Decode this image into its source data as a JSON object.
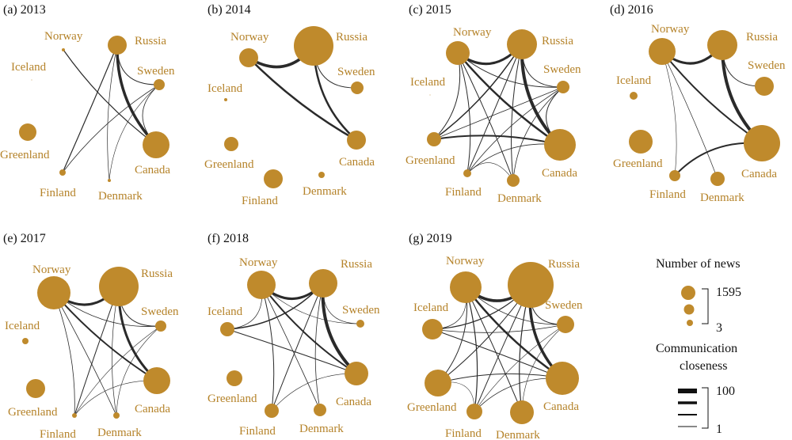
{
  "colors": {
    "node": "#bf8a2c",
    "label": "#b5832a",
    "edge": "#2a2a2a",
    "text": "#111111"
  },
  "panels": [
    {
      "id": "2013",
      "title": "(a) 2013",
      "nodes": {
        "Norway": {
          "name": "Norway",
          "size": 2
        },
        "Russia": {
          "name": "Russia",
          "size": 12
        },
        "Iceland": {
          "name": "Iceland",
          "size": 0.5
        },
        "Sweden": {
          "name": "Sweden",
          "size": 7
        },
        "Greenland": {
          "name": "Greenland",
          "size": 11
        },
        "Canada": {
          "name": "Canada",
          "size": 17
        },
        "Finland": {
          "name": "Finland",
          "size": 4
        },
        "Denmark": {
          "name": "Denmark",
          "size": 2
        }
      },
      "edges": [
        [
          "Russia",
          "Canada",
          3.5
        ],
        [
          "Norway",
          "Canada",
          1.2
        ],
        [
          "Russia",
          "Finland",
          1.2
        ],
        [
          "Russia",
          "Sweden",
          1
        ],
        [
          "Sweden",
          "Finland",
          0.8
        ],
        [
          "Sweden",
          "Canada",
          0.8
        ],
        [
          "Russia",
          "Denmark",
          0.7
        ],
        [
          "Sweden",
          "Denmark",
          0.6
        ]
      ]
    },
    {
      "id": "2014",
      "title": "(b) 2014",
      "nodes": {
        "Norway": {
          "name": "Norway",
          "size": 12
        },
        "Russia": {
          "name": "Russia",
          "size": 25
        },
        "Iceland": {
          "name": "Iceland",
          "size": 2
        },
        "Sweden": {
          "name": "Sweden",
          "size": 8
        },
        "Greenland": {
          "name": "Greenland",
          "size": 9
        },
        "Canada": {
          "name": "Canada",
          "size": 12
        },
        "Finland": {
          "name": "Finland",
          "size": 12
        },
        "Denmark": {
          "name": "Denmark",
          "size": 4
        }
      },
      "edges": [
        [
          "Norway",
          "Russia",
          3.5
        ],
        [
          "Norway",
          "Canada",
          2.5
        ],
        [
          "Russia",
          "Canada",
          2.5
        ],
        [
          "Russia",
          "Sweden",
          1
        ]
      ]
    },
    {
      "id": "2015",
      "title": "(c) 2015",
      "nodes": {
        "Norway": {
          "name": "Norway",
          "size": 15
        },
        "Russia": {
          "name": "Russia",
          "size": 19
        },
        "Iceland": {
          "name": "Iceland",
          "size": 0.5
        },
        "Sweden": {
          "name": "Sweden",
          "size": 8
        },
        "Greenland": {
          "name": "Greenland",
          "size": 9
        },
        "Canada": {
          "name": "Canada",
          "size": 20
        },
        "Finland": {
          "name": "Finland",
          "size": 5
        },
        "Denmark": {
          "name": "Denmark",
          "size": 8
        }
      },
      "edges": [
        [
          "Norway",
          "Russia",
          3
        ],
        [
          "Russia",
          "Canada",
          4
        ],
        [
          "Norway",
          "Canada",
          2.5
        ],
        [
          "Greenland",
          "Canada",
          2
        ],
        [
          "Greenland",
          "Russia",
          1.5
        ],
        [
          "Norway",
          "Greenland",
          1
        ],
        [
          "Norway",
          "Finland",
          1
        ],
        [
          "Norway",
          "Denmark",
          1
        ],
        [
          "Norway",
          "Sweden",
          1
        ],
        [
          "Russia",
          "Finland",
          1
        ],
        [
          "Russia",
          "Denmark",
          1
        ],
        [
          "Russia",
          "Sweden",
          1
        ],
        [
          "Sweden",
          "Finland",
          0.8
        ],
        [
          "Sweden",
          "Denmark",
          0.8
        ],
        [
          "Sweden",
          "Canada",
          1
        ],
        [
          "Finland",
          "Canada",
          0.8
        ],
        [
          "Greenland",
          "Sweden",
          0.8
        ],
        [
          "Finland",
          "Denmark",
          0.6
        ]
      ]
    },
    {
      "id": "2016",
      "title": "(d) 2016",
      "nodes": {
        "Norway": {
          "name": "Norway",
          "size": 17
        },
        "Russia": {
          "name": "Russia",
          "size": 19
        },
        "Iceland": {
          "name": "Iceland",
          "size": 5
        },
        "Sweden": {
          "name": "Sweden",
          "size": 12
        },
        "Greenland": {
          "name": "Greenland",
          "size": 15
        },
        "Canada": {
          "name": "Canada",
          "size": 23
        },
        "Finland": {
          "name": "Finland",
          "size": 7
        },
        "Denmark": {
          "name": "Denmark",
          "size": 9
        }
      },
      "edges": [
        [
          "Norway",
          "Russia",
          3
        ],
        [
          "Russia",
          "Canada",
          4
        ],
        [
          "Norway",
          "Canada",
          2
        ],
        [
          "Finland",
          "Canada",
          2
        ],
        [
          "Russia",
          "Sweden",
          1
        ],
        [
          "Norway",
          "Denmark",
          0.7
        ],
        [
          "Norway",
          "Finland",
          0.6
        ]
      ]
    },
    {
      "id": "2017",
      "title": "(e) 2017",
      "nodes": {
        "Norway": {
          "name": "Norway",
          "size": 21
        },
        "Russia": {
          "name": "Russia",
          "size": 25
        },
        "Iceland": {
          "name": "Iceland",
          "size": 4
        },
        "Sweden": {
          "name": "Sweden",
          "size": 7
        },
        "Greenland": {
          "name": "Greenland",
          "size": 12
        },
        "Canada": {
          "name": "Canada",
          "size": 17
        },
        "Finland": {
          "name": "Finland",
          "size": 3
        },
        "Denmark": {
          "name": "Denmark",
          "size": 4
        }
      },
      "edges": [
        [
          "Norway",
          "Russia",
          3
        ],
        [
          "Russia",
          "Canada",
          3
        ],
        [
          "Norway",
          "Canada",
          2
        ],
        [
          "Russia",
          "Sweden",
          1
        ],
        [
          "Norway",
          "Sweden",
          0.8
        ],
        [
          "Norway",
          "Denmark",
          0.8
        ],
        [
          "Norway",
          "Finland",
          0.8
        ],
        [
          "Russia",
          "Finland",
          1
        ],
        [
          "Russia",
          "Denmark",
          0.7
        ],
        [
          "Sweden",
          "Finland",
          0.6
        ],
        [
          "Sweden",
          "Denmark",
          0.6
        ],
        [
          "Finland",
          "Canada",
          0.6
        ]
      ]
    },
    {
      "id": "2018",
      "title": "(f) 2018",
      "nodes": {
        "Norway": {
          "name": "Norway",
          "size": 18
        },
        "Russia": {
          "name": "Russia",
          "size": 18
        },
        "Iceland": {
          "name": "Iceland",
          "size": 9
        },
        "Sweden": {
          "name": "Sweden",
          "size": 5
        },
        "Greenland": {
          "name": "Greenland",
          "size": 10
        },
        "Canada": {
          "name": "Canada",
          "size": 15
        },
        "Finland": {
          "name": "Finland",
          "size": 9
        },
        "Denmark": {
          "name": "Denmark",
          "size": 8
        }
      },
      "edges": [
        [
          "Norway",
          "Russia",
          3
        ],
        [
          "Russia",
          "Canada",
          4
        ],
        [
          "Norway",
          "Canada",
          2
        ],
        [
          "Iceland",
          "Russia",
          1.5
        ],
        [
          "Iceland",
          "Canada",
          1
        ],
        [
          "Norway",
          "Finland",
          1
        ],
        [
          "Russia",
          "Finland",
          1
        ],
        [
          "Russia",
          "Denmark",
          0.8
        ],
        [
          "Norway",
          "Denmark",
          0.8
        ],
        [
          "Norway",
          "Sweden",
          0.6
        ],
        [
          "Russia",
          "Sweden",
          0.7
        ],
        [
          "Norway",
          "Iceland",
          0.7
        ],
        [
          "Finland",
          "Canada",
          0.6
        ]
      ]
    },
    {
      "id": "2019",
      "title": "(g) 2019",
      "nodes": {
        "Norway": {
          "name": "Norway",
          "size": 20
        },
        "Russia": {
          "name": "Russia",
          "size": 29
        },
        "Iceland": {
          "name": "Iceland",
          "size": 13
        },
        "Sweden": {
          "name": "Sweden",
          "size": 11
        },
        "Greenland": {
          "name": "Greenland",
          "size": 17
        },
        "Canada": {
          "name": "Canada",
          "size": 21
        },
        "Finland": {
          "name": "Finland",
          "size": 10
        },
        "Denmark": {
          "name": "Denmark",
          "size": 15
        }
      },
      "edges": [
        [
          "Norway",
          "Russia",
          3.5
        ],
        [
          "Russia",
          "Canada",
          3.5
        ],
        [
          "Norway",
          "Canada",
          2.5
        ],
        [
          "Iceland",
          "Russia",
          1.2
        ],
        [
          "Iceland",
          "Canada",
          1
        ],
        [
          "Iceland",
          "Sweden",
          0.8
        ],
        [
          "Greenland",
          "Russia",
          1
        ],
        [
          "Greenland",
          "Canada",
          1
        ],
        [
          "Greenland",
          "Norway",
          1
        ],
        [
          "Norway",
          "Finland",
          1.2
        ],
        [
          "Norway",
          "Denmark",
          1
        ],
        [
          "Russia",
          "Finland",
          1
        ],
        [
          "Russia",
          "Denmark",
          1.2
        ],
        [
          "Russia",
          "Sweden",
          1
        ],
        [
          "Norway",
          "Sweden",
          0.8
        ],
        [
          "Finland",
          "Canada",
          0.8
        ],
        [
          "Denmark",
          "Sweden",
          0.6
        ],
        [
          "Finland",
          "Sweden",
          0.6
        ],
        [
          "Iceland",
          "Norway",
          0.7
        ],
        [
          "Greenland",
          "Finland",
          0.6
        ]
      ]
    }
  ],
  "legend": {
    "news_title": "Number of news",
    "news_max": "1595",
    "news_min": "3",
    "closeness_title_1": "Communication",
    "closeness_title_2": "closeness",
    "closeness_max": "100",
    "closeness_min": "1"
  }
}
